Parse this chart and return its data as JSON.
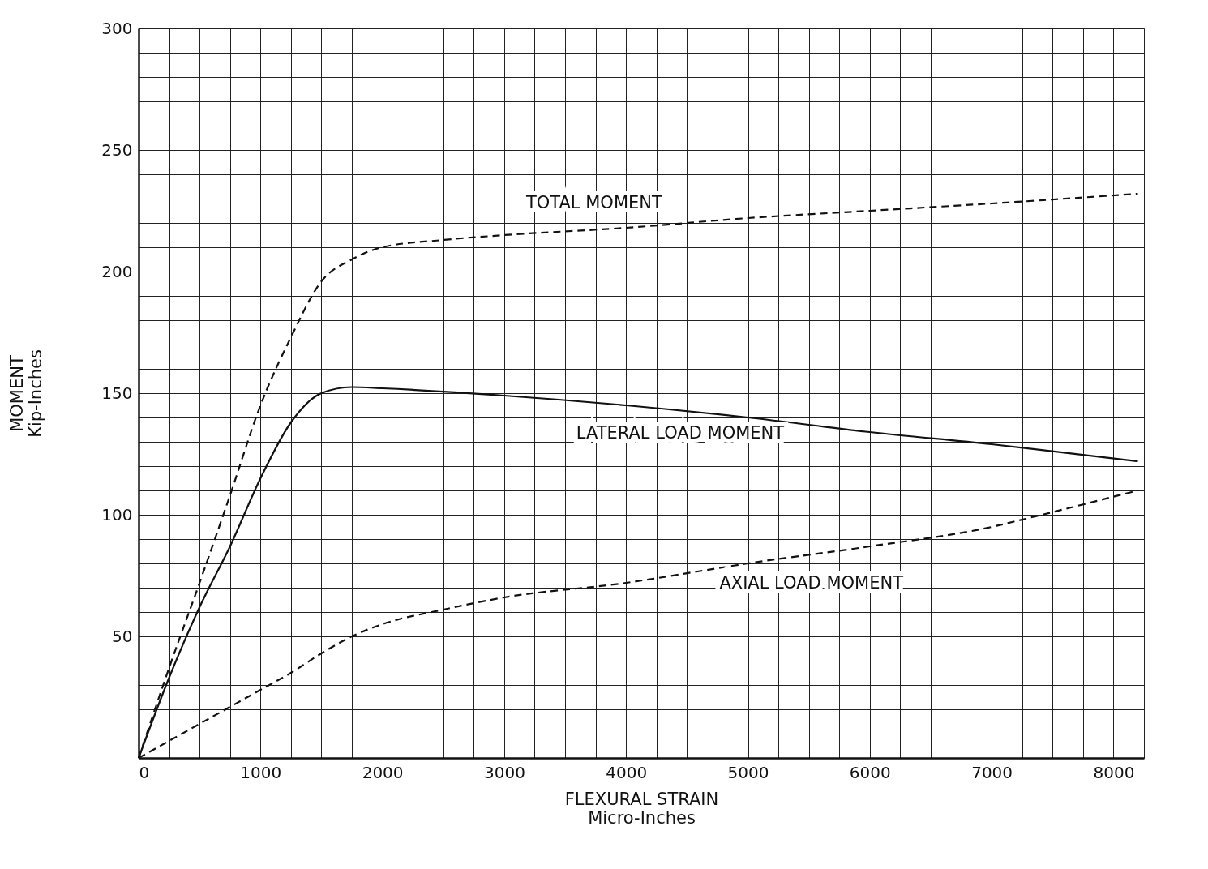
{
  "chart_data": {
    "type": "line",
    "xlabel": "FLEXURAL STRAIN\nMicro-Inches",
    "ylabel": "MOMENT\nKip-Inches",
    "xlim": [
      0,
      8250
    ],
    "ylim": [
      0,
      300
    ],
    "xticks": [
      0,
      {
        "value": 250,
        "label": null
      },
      {
        "value": 500,
        "label": null
      },
      {
        "value": 750,
        "label": null
      },
      1000,
      {
        "value": 1250,
        "label": null
      },
      {
        "value": 1500,
        "label": null
      },
      {
        "value": 1750,
        "label": null
      },
      2000,
      {
        "value": 2250,
        "label": null
      },
      {
        "value": 2500,
        "label": null
      },
      {
        "value": 2750,
        "label": null
      },
      3000,
      {
        "value": 3250,
        "label": null
      },
      {
        "value": 3500,
        "label": null
      },
      {
        "value": 3750,
        "label": null
      },
      4000,
      {
        "value": 4250,
        "label": null
      },
      {
        "value": 4500,
        "label": null
      },
      {
        "value": 4750,
        "label": null
      },
      5000,
      {
        "value": 5250,
        "label": null
      },
      {
        "value": 5500,
        "label": null
      },
      {
        "value": 5750,
        "label": null
      },
      6000,
      {
        "value": 6250,
        "label": null
      },
      {
        "value": 6500,
        "label": null
      },
      {
        "value": 6750,
        "label": null
      },
      7000,
      {
        "value": 7250,
        "label": null
      },
      {
        "value": 7500,
        "label": null
      },
      {
        "value": 7750,
        "label": null
      },
      8000,
      {
        "value": 8250,
        "label": null
      }
    ],
    "yticks": [
      {
        "value": 0,
        "label": null
      },
      {
        "value": 10,
        "label": null
      },
      {
        "value": 20,
        "label": null
      },
      {
        "value": 30,
        "label": null
      },
      {
        "value": 40,
        "label": null
      },
      50,
      {
        "value": 60,
        "label": null
      },
      {
        "value": 70,
        "label": null
      },
      {
        "value": 80,
        "label": null
      },
      {
        "value": 90,
        "label": null
      },
      100,
      {
        "value": 110,
        "label": null
      },
      {
        "value": 120,
        "label": null
      },
      {
        "value": 130,
        "label": null
      },
      {
        "value": 140,
        "label": null
      },
      150,
      {
        "value": 160,
        "label": null
      },
      {
        "value": 170,
        "label": null
      },
      {
        "value": 180,
        "label": null
      },
      {
        "value": 190,
        "label": null
      },
      200,
      {
        "value": 210,
        "label": null
      },
      {
        "value": 220,
        "label": null
      },
      {
        "value": 230,
        "label": null
      },
      {
        "value": 240,
        "label": null
      },
      250,
      {
        "value": 260,
        "label": null
      },
      {
        "value": 270,
        "label": null
      },
      {
        "value": 280,
        "label": null
      },
      {
        "value": 290,
        "label": null
      },
      300
    ],
    "grid": true,
    "marker": "none",
    "series": [
      {
        "color": "#111111",
        "line_style": "dashed",
        "x": [
          0,
          250,
          500,
          750,
          1000,
          1250,
          1500,
          1750,
          2000,
          2500,
          3000,
          4000,
          5000,
          6000,
          7000,
          8200
        ],
        "values": [
          0,
          37,
          72,
          108,
          145,
          173,
          196,
          205,
          210,
          213,
          215,
          218,
          222,
          225,
          228,
          232
        ]
      },
      {
        "color": "#111111",
        "line_style": "solid",
        "x": [
          0,
          250,
          500,
          750,
          1000,
          1250,
          1500,
          1750,
          2000,
          3000,
          4000,
          5000,
          6000,
          7000,
          8200
        ],
        "values": [
          0,
          33,
          62,
          87,
          115,
          138,
          150,
          152.5,
          152,
          149,
          145,
          140,
          134,
          129,
          122
        ]
      },
      {
        "color": "#111111",
        "line_style": "dashed",
        "x": [
          0,
          500,
          1000,
          1250,
          1500,
          1750,
          2000,
          2500,
          3000,
          4000,
          4750,
          5000,
          6000,
          7000,
          7250,
          8200
        ],
        "values": [
          0,
          14,
          28,
          35,
          43,
          50,
          55,
          61,
          66,
          72,
          78,
          80,
          87,
          95,
          98,
          110
        ]
      }
    ],
    "annotations": [
      {
        "text": "TOTAL MOMENT",
        "x": 4350,
        "y": 220
      },
      {
        "text": "LATERAL LOAD MOMENT",
        "x": 5350,
        "y": 139
      },
      {
        "text": "AXIAL LOAD MOMENT",
        "x": 4700,
        "y": 78
      }
    ]
  }
}
